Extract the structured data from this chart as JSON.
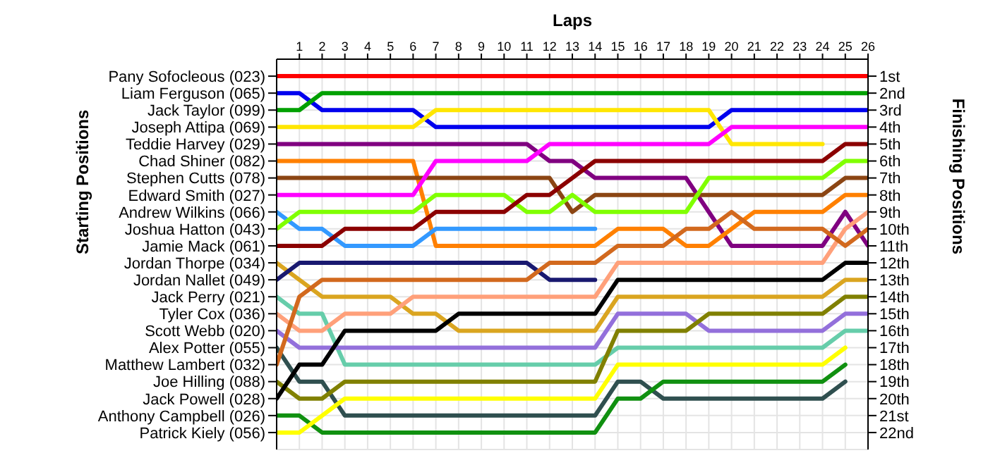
{
  "chart_data": {
    "type": "line",
    "xlabel": "Laps",
    "annotations": [
      "Starting Positions"
    ],
    "y2label": "Finishing Positions",
    "grid": true,
    "x": [
      0,
      1,
      2,
      3,
      4,
      5,
      6,
      7,
      8,
      9,
      10,
      11,
      12,
      13,
      14,
      15,
      16,
      17,
      18,
      19,
      20,
      21,
      22,
      23,
      24,
      25,
      26
    ],
    "xlim": [
      0,
      26
    ],
    "xticks": [
      1,
      2,
      3,
      4,
      5,
      6,
      7,
      8,
      9,
      10,
      11,
      12,
      13,
      14,
      15,
      16,
      17,
      18,
      19,
      20,
      21,
      22,
      23,
      24,
      25,
      26
    ],
    "y_categories": [
      "Pany Sofocleous (023)",
      "Liam Ferguson (065)",
      "Jack Taylor (099)",
      "Joseph Attipa (069)",
      "Teddie Harvey (029)",
      "Chad Shiner (082)",
      "Stephen Cutts (078)",
      "Edward Smith (027)",
      "Andrew Wilkins (066)",
      "Joshua Hatton (043)",
      "Jamie Mack (061)",
      "Jordan Thorpe (034)",
      "Jordan Nallet (049)",
      "Jack Perry (021)",
      "Tyler Cox (036)",
      "Scott Webb (020)",
      "Alex Potter (055)",
      "Matthew Lambert (032)",
      "Joe Hilling (088)",
      "Jack Powell (028)",
      "Anthony Campbell (026)",
      "Patrick Kiely (056)"
    ],
    "y2lim": [
      23,
      0
    ],
    "y2ticks": [
      {
        "value": 1,
        "label": "1st"
      },
      {
        "value": 2,
        "label": "2nd"
      },
      {
        "value": 3,
        "label": "3rd"
      },
      {
        "value": 4,
        "label": "4th"
      },
      {
        "value": 5,
        "label": "5th"
      },
      {
        "value": 6,
        "label": "6th"
      },
      {
        "value": 7,
        "label": "7th"
      },
      {
        "value": 8,
        "label": "8th"
      },
      {
        "value": 9,
        "label": "9th"
      },
      {
        "value": 10,
        "label": "10th"
      },
      {
        "value": 11,
        "label": "11th"
      },
      {
        "value": 12,
        "label": "12th"
      },
      {
        "value": 13,
        "label": "13th"
      },
      {
        "value": 14,
        "label": "14th"
      },
      {
        "value": 15,
        "label": "15th"
      },
      {
        "value": 16,
        "label": "16th"
      },
      {
        "value": 17,
        "label": "17th"
      },
      {
        "value": 18,
        "label": "18th"
      },
      {
        "value": 19,
        "label": "19th"
      },
      {
        "value": 20,
        "label": "20th"
      },
      {
        "value": 21,
        "label": "21st"
      },
      {
        "value": 22,
        "label": "22nd"
      }
    ],
    "series": [
      {
        "axis": "y2",
        "color": "#ff0000",
        "values": [
          1,
          1,
          1,
          1,
          1,
          1,
          1,
          1,
          1,
          1,
          1,
          1,
          1,
          1,
          1,
          1,
          1,
          1,
          1,
          1,
          1,
          1,
          1,
          1,
          1,
          1,
          1
        ]
      },
      {
        "axis": "y2",
        "color": "#0000ee",
        "values": [
          2,
          2,
          3,
          3,
          3,
          3,
          3,
          4,
          4,
          4,
          4,
          4,
          4,
          4,
          4,
          4,
          4,
          4,
          4,
          4,
          3,
          3,
          3,
          3,
          3,
          3,
          3
        ]
      },
      {
        "axis": "y2",
        "color": "#00a000",
        "values": [
          3,
          3,
          2,
          2,
          2,
          2,
          2,
          2,
          2,
          2,
          2,
          2,
          2,
          2,
          2,
          2,
          2,
          2,
          2,
          2,
          2,
          2,
          2,
          2,
          2,
          2,
          2
        ]
      },
      {
        "axis": "y2",
        "color": "#ffe600",
        "values": [
          4,
          4,
          4,
          4,
          4,
          4,
          4,
          3,
          3,
          3,
          3,
          3,
          3,
          3,
          3,
          3,
          3,
          3,
          3,
          3,
          5,
          5,
          5,
          5,
          5,
          null,
          null
        ]
      },
      {
        "axis": "y2",
        "color": "#800080",
        "values": [
          5,
          5,
          5,
          5,
          5,
          5,
          5,
          5,
          5,
          5,
          5,
          5,
          6,
          6,
          7,
          7,
          7,
          7,
          7,
          9,
          11,
          11,
          11,
          11,
          11,
          9,
          11
        ]
      },
      {
        "axis": "y2",
        "color": "#ff8000",
        "values": [
          6,
          6,
          6,
          6,
          6,
          6,
          6,
          11,
          11,
          11,
          11,
          11,
          11,
          11,
          11,
          10,
          10,
          10,
          11,
          11,
          10,
          9,
          9,
          9,
          9,
          8,
          8
        ]
      },
      {
        "axis": "y2",
        "color": "#8b4513",
        "values": [
          7,
          7,
          7,
          7,
          7,
          7,
          7,
          7,
          7,
          7,
          7,
          7,
          7,
          9,
          8,
          8,
          8,
          8,
          8,
          8,
          8,
          8,
          8,
          8,
          8,
          7,
          7
        ]
      },
      {
        "axis": "y2",
        "color": "#ff00ff",
        "values": [
          8,
          8,
          8,
          8,
          8,
          8,
          8,
          6,
          6,
          6,
          6,
          6,
          5,
          5,
          5,
          5,
          5,
          5,
          5,
          5,
          4,
          4,
          4,
          4,
          4,
          4,
          4
        ]
      },
      {
        "axis": "y2",
        "color": "#3399ff",
        "values": [
          9,
          10,
          10,
          11,
          11,
          11,
          11,
          10,
          10,
          10,
          10,
          10,
          10,
          10,
          10,
          null,
          null,
          null,
          null,
          null,
          null,
          null,
          null,
          null,
          null,
          null,
          null
        ]
      },
      {
        "axis": "y2",
        "color": "#80ff00",
        "values": [
          10,
          9,
          9,
          9,
          9,
          9,
          9,
          8,
          8,
          8,
          8,
          9,
          9,
          8,
          9,
          9,
          9,
          9,
          9,
          7,
          7,
          7,
          7,
          7,
          7,
          6,
          6
        ]
      },
      {
        "axis": "y2",
        "color": "#8b0000",
        "values": [
          11,
          11,
          11,
          10,
          10,
          10,
          10,
          9,
          9,
          9,
          9,
          8,
          8,
          7,
          6,
          6,
          6,
          6,
          6,
          6,
          6,
          6,
          6,
          6,
          6,
          5,
          5
        ]
      },
      {
        "axis": "y2",
        "color": "#daa520",
        "values": [
          12,
          13,
          14,
          14,
          14,
          14,
          15,
          15,
          16,
          16,
          16,
          16,
          16,
          16,
          16,
          14,
          14,
          14,
          14,
          14,
          14,
          14,
          14,
          14,
          14,
          13,
          13
        ]
      },
      {
        "axis": "y2",
        "color": "#191970",
        "values": [
          13,
          12,
          12,
          12,
          12,
          12,
          12,
          12,
          12,
          12,
          12,
          12,
          13,
          13,
          13,
          null,
          null,
          null,
          null,
          null,
          null,
          null,
          null,
          null,
          null,
          null,
          null
        ]
      },
      {
        "axis": "y2",
        "color": "#66cdaa",
        "values": [
          14,
          15,
          15,
          18,
          18,
          18,
          18,
          18,
          18,
          18,
          18,
          18,
          18,
          18,
          18,
          17,
          17,
          17,
          17,
          17,
          17,
          17,
          17,
          17,
          17,
          16,
          16
        ]
      },
      {
        "axis": "y2",
        "color": "#ffa07a",
        "values": [
          15,
          16,
          16,
          15,
          15,
          15,
          14,
          14,
          14,
          14,
          14,
          14,
          14,
          14,
          14,
          12,
          12,
          12,
          12,
          12,
          12,
          12,
          12,
          12,
          12,
          10,
          9
        ]
      },
      {
        "axis": "y2",
        "color": "#9370db",
        "values": [
          16,
          17,
          17,
          17,
          17,
          17,
          17,
          17,
          17,
          17,
          17,
          17,
          17,
          17,
          17,
          15,
          15,
          15,
          15,
          16,
          16,
          16,
          16,
          16,
          16,
          15,
          15
        ]
      },
      {
        "axis": "y2",
        "color": "#2f4f4f",
        "values": [
          17,
          19,
          19,
          21,
          21,
          21,
          21,
          21,
          21,
          21,
          21,
          21,
          21,
          21,
          21,
          19,
          19,
          20,
          20,
          20,
          20,
          20,
          20,
          20,
          20,
          19,
          null
        ]
      },
      {
        "axis": "y2",
        "color": "#d2691e",
        "values": [
          18,
          14,
          13,
          13,
          13,
          13,
          13,
          13,
          13,
          13,
          13,
          13,
          12,
          12,
          12,
          11,
          11,
          11,
          10,
          10,
          9,
          10,
          10,
          10,
          10,
          11,
          10
        ]
      },
      {
        "axis": "y2",
        "color": "#808000",
        "values": [
          19,
          20,
          20,
          19,
          19,
          19,
          19,
          19,
          19,
          19,
          19,
          19,
          19,
          19,
          19,
          16,
          16,
          16,
          16,
          15,
          15,
          15,
          15,
          15,
          15,
          14,
          14
        ]
      },
      {
        "axis": "y2",
        "color": "#000000",
        "values": [
          20,
          18,
          18,
          16,
          16,
          16,
          16,
          16,
          15,
          15,
          15,
          15,
          15,
          15,
          15,
          13,
          13,
          13,
          13,
          13,
          13,
          13,
          13,
          13,
          13,
          12,
          12
        ]
      },
      {
        "axis": "y2",
        "color": "#109010",
        "values": [
          21,
          21,
          22,
          22,
          22,
          22,
          22,
          22,
          22,
          22,
          22,
          22,
          22,
          22,
          22,
          20,
          20,
          19,
          19,
          19,
          19,
          19,
          19,
          19,
          19,
          18,
          null
        ]
      },
      {
        "axis": "y2",
        "color": "#ffff00",
        "values": [
          22,
          22,
          21,
          20,
          20,
          20,
          20,
          20,
          20,
          20,
          20,
          20,
          20,
          20,
          20,
          18,
          18,
          18,
          18,
          18,
          18,
          18,
          18,
          18,
          18,
          17,
          null
        ]
      }
    ]
  }
}
